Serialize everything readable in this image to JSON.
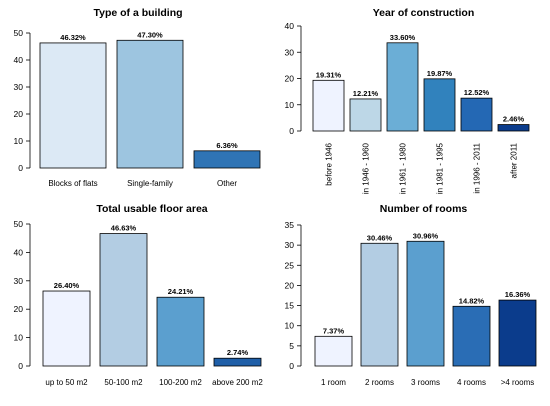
{
  "chart_data": [
    {
      "type": "bar",
      "title": "Type of a building",
      "categories": [
        "Blocks of flats",
        "Single-family",
        "Other"
      ],
      "values": [
        46.32,
        47.3,
        6.36
      ],
      "value_labels": [
        "46.32%",
        "47.30%",
        "6.36%"
      ],
      "colors": [
        "#dce9f5",
        "#9dc5e0",
        "#2f74b5"
      ],
      "ylim": [
        0,
        50
      ],
      "yticks": [
        0,
        10,
        20,
        30,
        40,
        50
      ],
      "xlabel": "",
      "ylabel": "",
      "rotated_labels": false
    },
    {
      "type": "bar",
      "title": "Year of construction",
      "categories": [
        "before 1946",
        "in 1946 - 1960",
        "in 1961 - 1980",
        "in 1981 - 1995",
        "in 1996 - 2011",
        "after 2011"
      ],
      "values": [
        19.31,
        12.21,
        33.6,
        19.87,
        12.52,
        2.46
      ],
      "value_labels": [
        "19.31%",
        "12.21%",
        "33.60%",
        "19.87%",
        "12.52%",
        "2.46%"
      ],
      "colors": [
        "#eff3ff",
        "#bdd7e7",
        "#6baed6",
        "#3182bd",
        "#2468b4",
        "#0b3c8c"
      ],
      "ylim": [
        0,
        40
      ],
      "yticks": [
        0,
        10,
        20,
        30,
        40
      ],
      "xlabel": "",
      "ylabel": "",
      "rotated_labels": true
    },
    {
      "type": "bar",
      "title": "Total usable floor area",
      "categories": [
        "up to 50 m2",
        "50-100 m2",
        "100-200 m2",
        "above 200 m2"
      ],
      "values": [
        26.4,
        46.63,
        24.21,
        2.74
      ],
      "value_labels": [
        "26.40%",
        "46.63%",
        "24.21%",
        "2.74%"
      ],
      "colors": [
        "#eff3ff",
        "#b3cde3",
        "#5b9fcf",
        "#1f5fa8"
      ],
      "ylim": [
        0,
        50
      ],
      "yticks": [
        0,
        10,
        20,
        30,
        40,
        50
      ],
      "xlabel": "",
      "ylabel": "",
      "rotated_labels": false
    },
    {
      "type": "bar",
      "title": "Number of rooms",
      "categories": [
        "1 room",
        "2 rooms",
        "3 rooms",
        "4 rooms",
        ">4 rooms"
      ],
      "values": [
        7.37,
        30.46,
        30.96,
        14.82,
        16.36
      ],
      "value_labels": [
        "7.37%",
        "30.46%",
        "30.96%",
        "14.82%",
        "16.36%"
      ],
      "colors": [
        "#eff3ff",
        "#b3cde3",
        "#5b9fcf",
        "#2a6db5",
        "#0b3c8c"
      ],
      "ylim": [
        0,
        35
      ],
      "yticks": [
        0,
        5,
        10,
        15,
        20,
        25,
        30,
        35
      ],
      "xlabel": "",
      "ylabel": "",
      "rotated_labels": false
    }
  ]
}
